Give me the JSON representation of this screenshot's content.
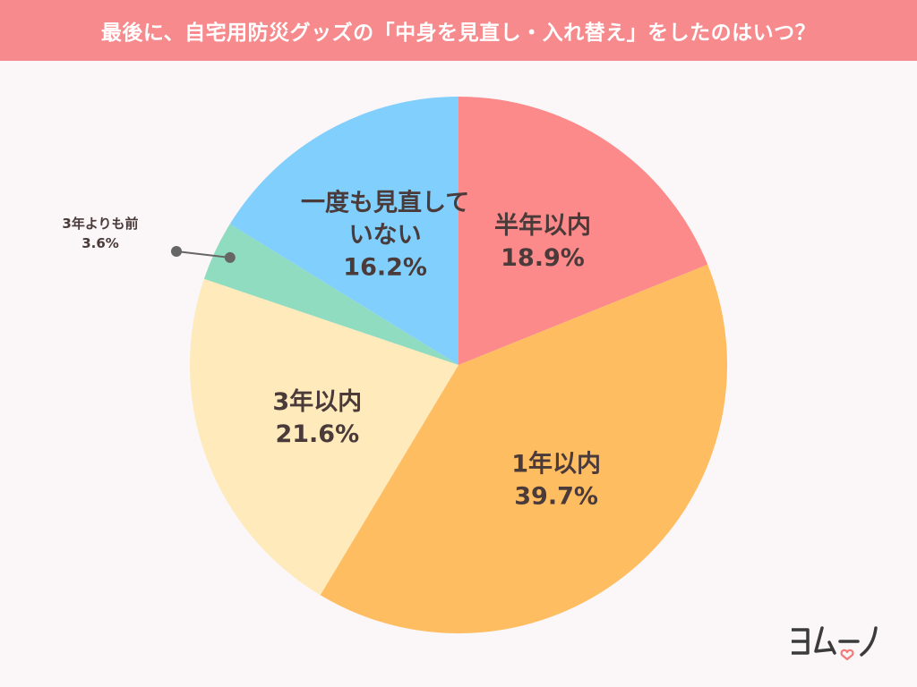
{
  "title": "最後に、自宅用防災グッズの「中身を見直し・入れ替え」をしたのはいつ？",
  "chart_data": {
    "type": "pie",
    "start": "12 o'clock",
    "direction": "clockwise",
    "slices": [
      {
        "label_lines": [
          "半年以内"
        ],
        "value": 18.9,
        "value_text": "18.9%",
        "color": "#fc8a8a"
      },
      {
        "label_lines": [
          "1年以内"
        ],
        "value": 39.7,
        "value_text": "39.7%",
        "color": "#ffbd62"
      },
      {
        "label_lines": [
          "3年以内"
        ],
        "value": 21.6,
        "value_text": "21.6%",
        "color": "#ffeabb"
      },
      {
        "label_lines": [
          "3年よりも前"
        ],
        "value": 3.6,
        "value_text": "3.6%",
        "color": "#8fdcc0",
        "label_outside": true
      },
      {
        "label_lines": [
          "一度も見直して",
          "いない"
        ],
        "value": 16.2,
        "value_text": "16.2%",
        "color": "#80cffc"
      }
    ]
  },
  "logo": {
    "text": "ヨムーノ",
    "accent_color": "#f47a7a"
  }
}
